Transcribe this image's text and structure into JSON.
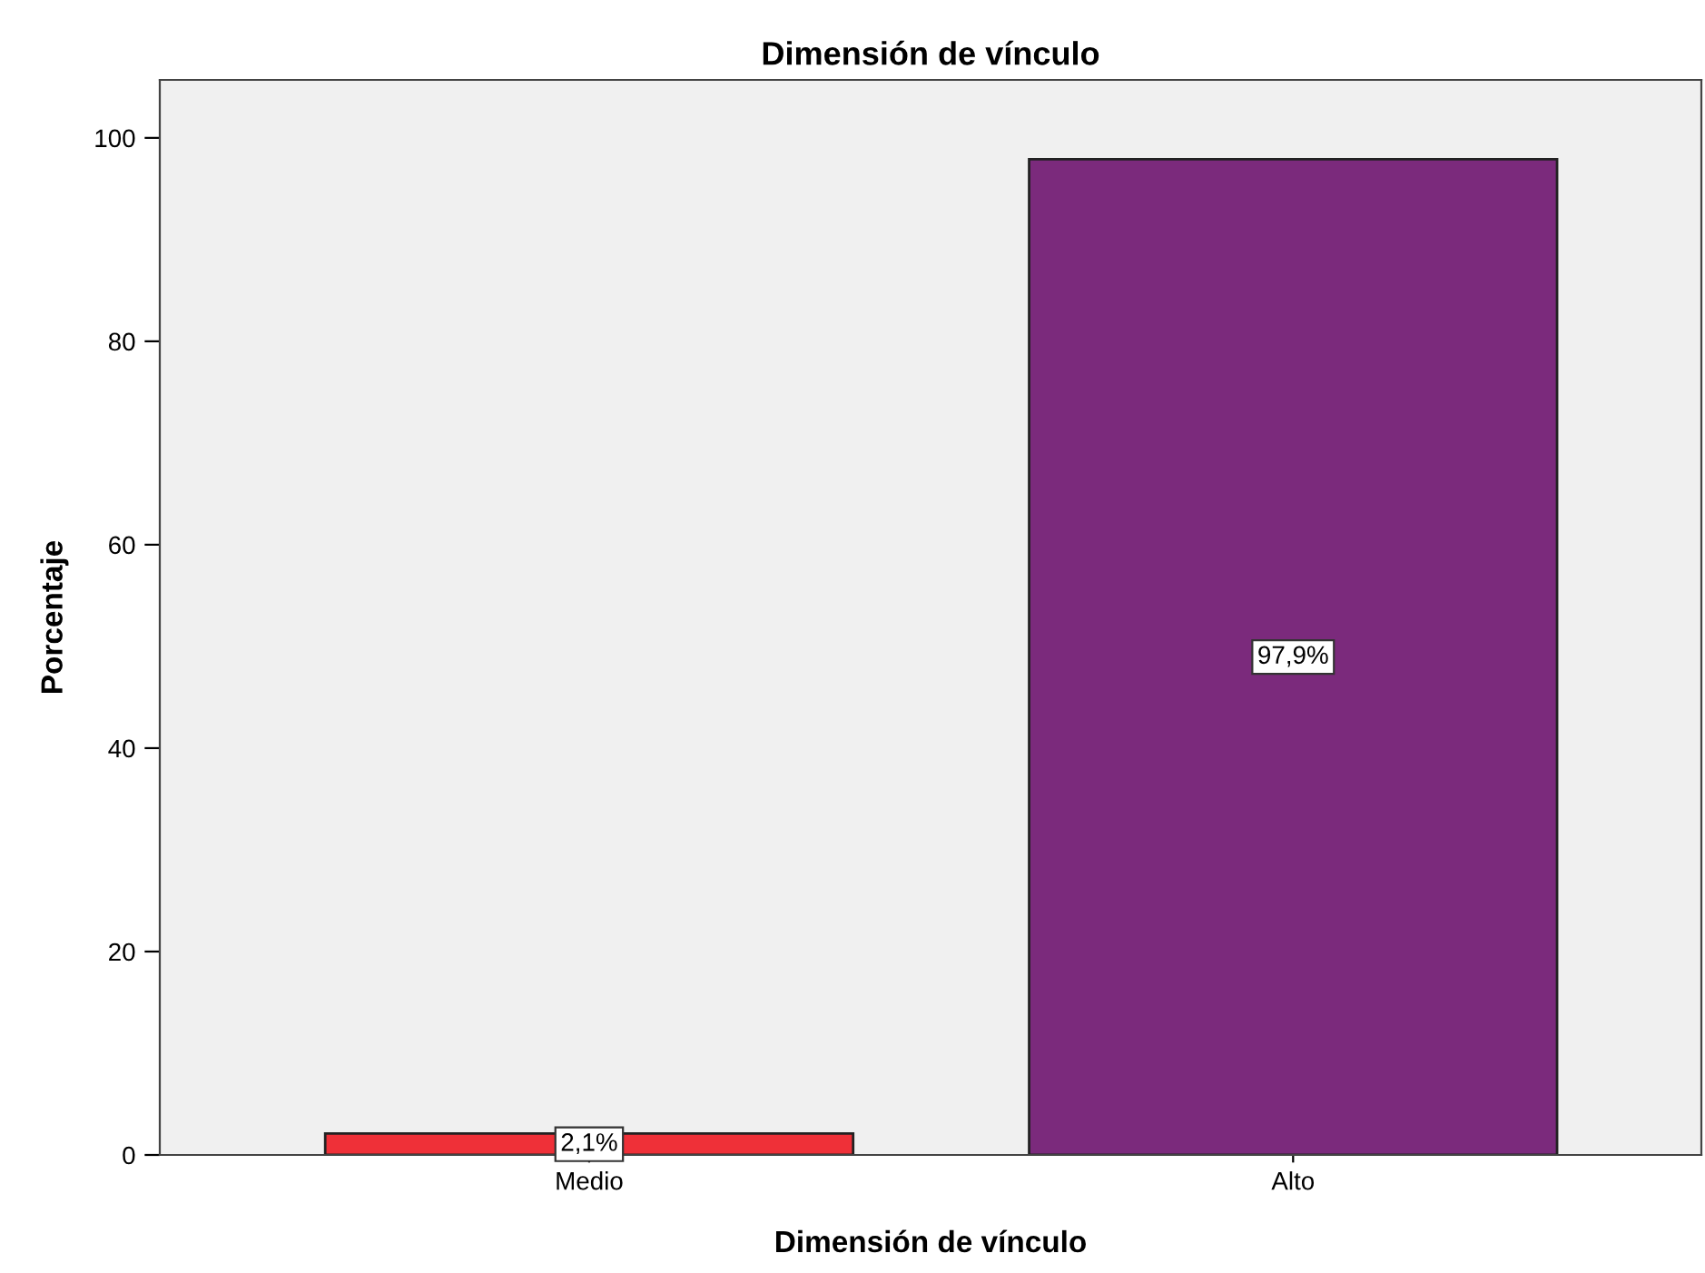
{
  "chart_data": {
    "type": "bar",
    "title": "Dimensión de vínculo",
    "xlabel": "Dimensión de vínculo",
    "ylabel": "Porcentaje",
    "categories": [
      "Medio",
      "Alto"
    ],
    "values": [
      2.1,
      97.9
    ],
    "colors": [
      "#ef3038",
      "#7b2a7c"
    ],
    "value_labels": [
      "2,1%",
      "97,9%"
    ],
    "ylim": [
      0,
      105.7
    ],
    "yticks": [
      0,
      20,
      40,
      60,
      80,
      100
    ],
    "grid": false,
    "legend": false
  }
}
